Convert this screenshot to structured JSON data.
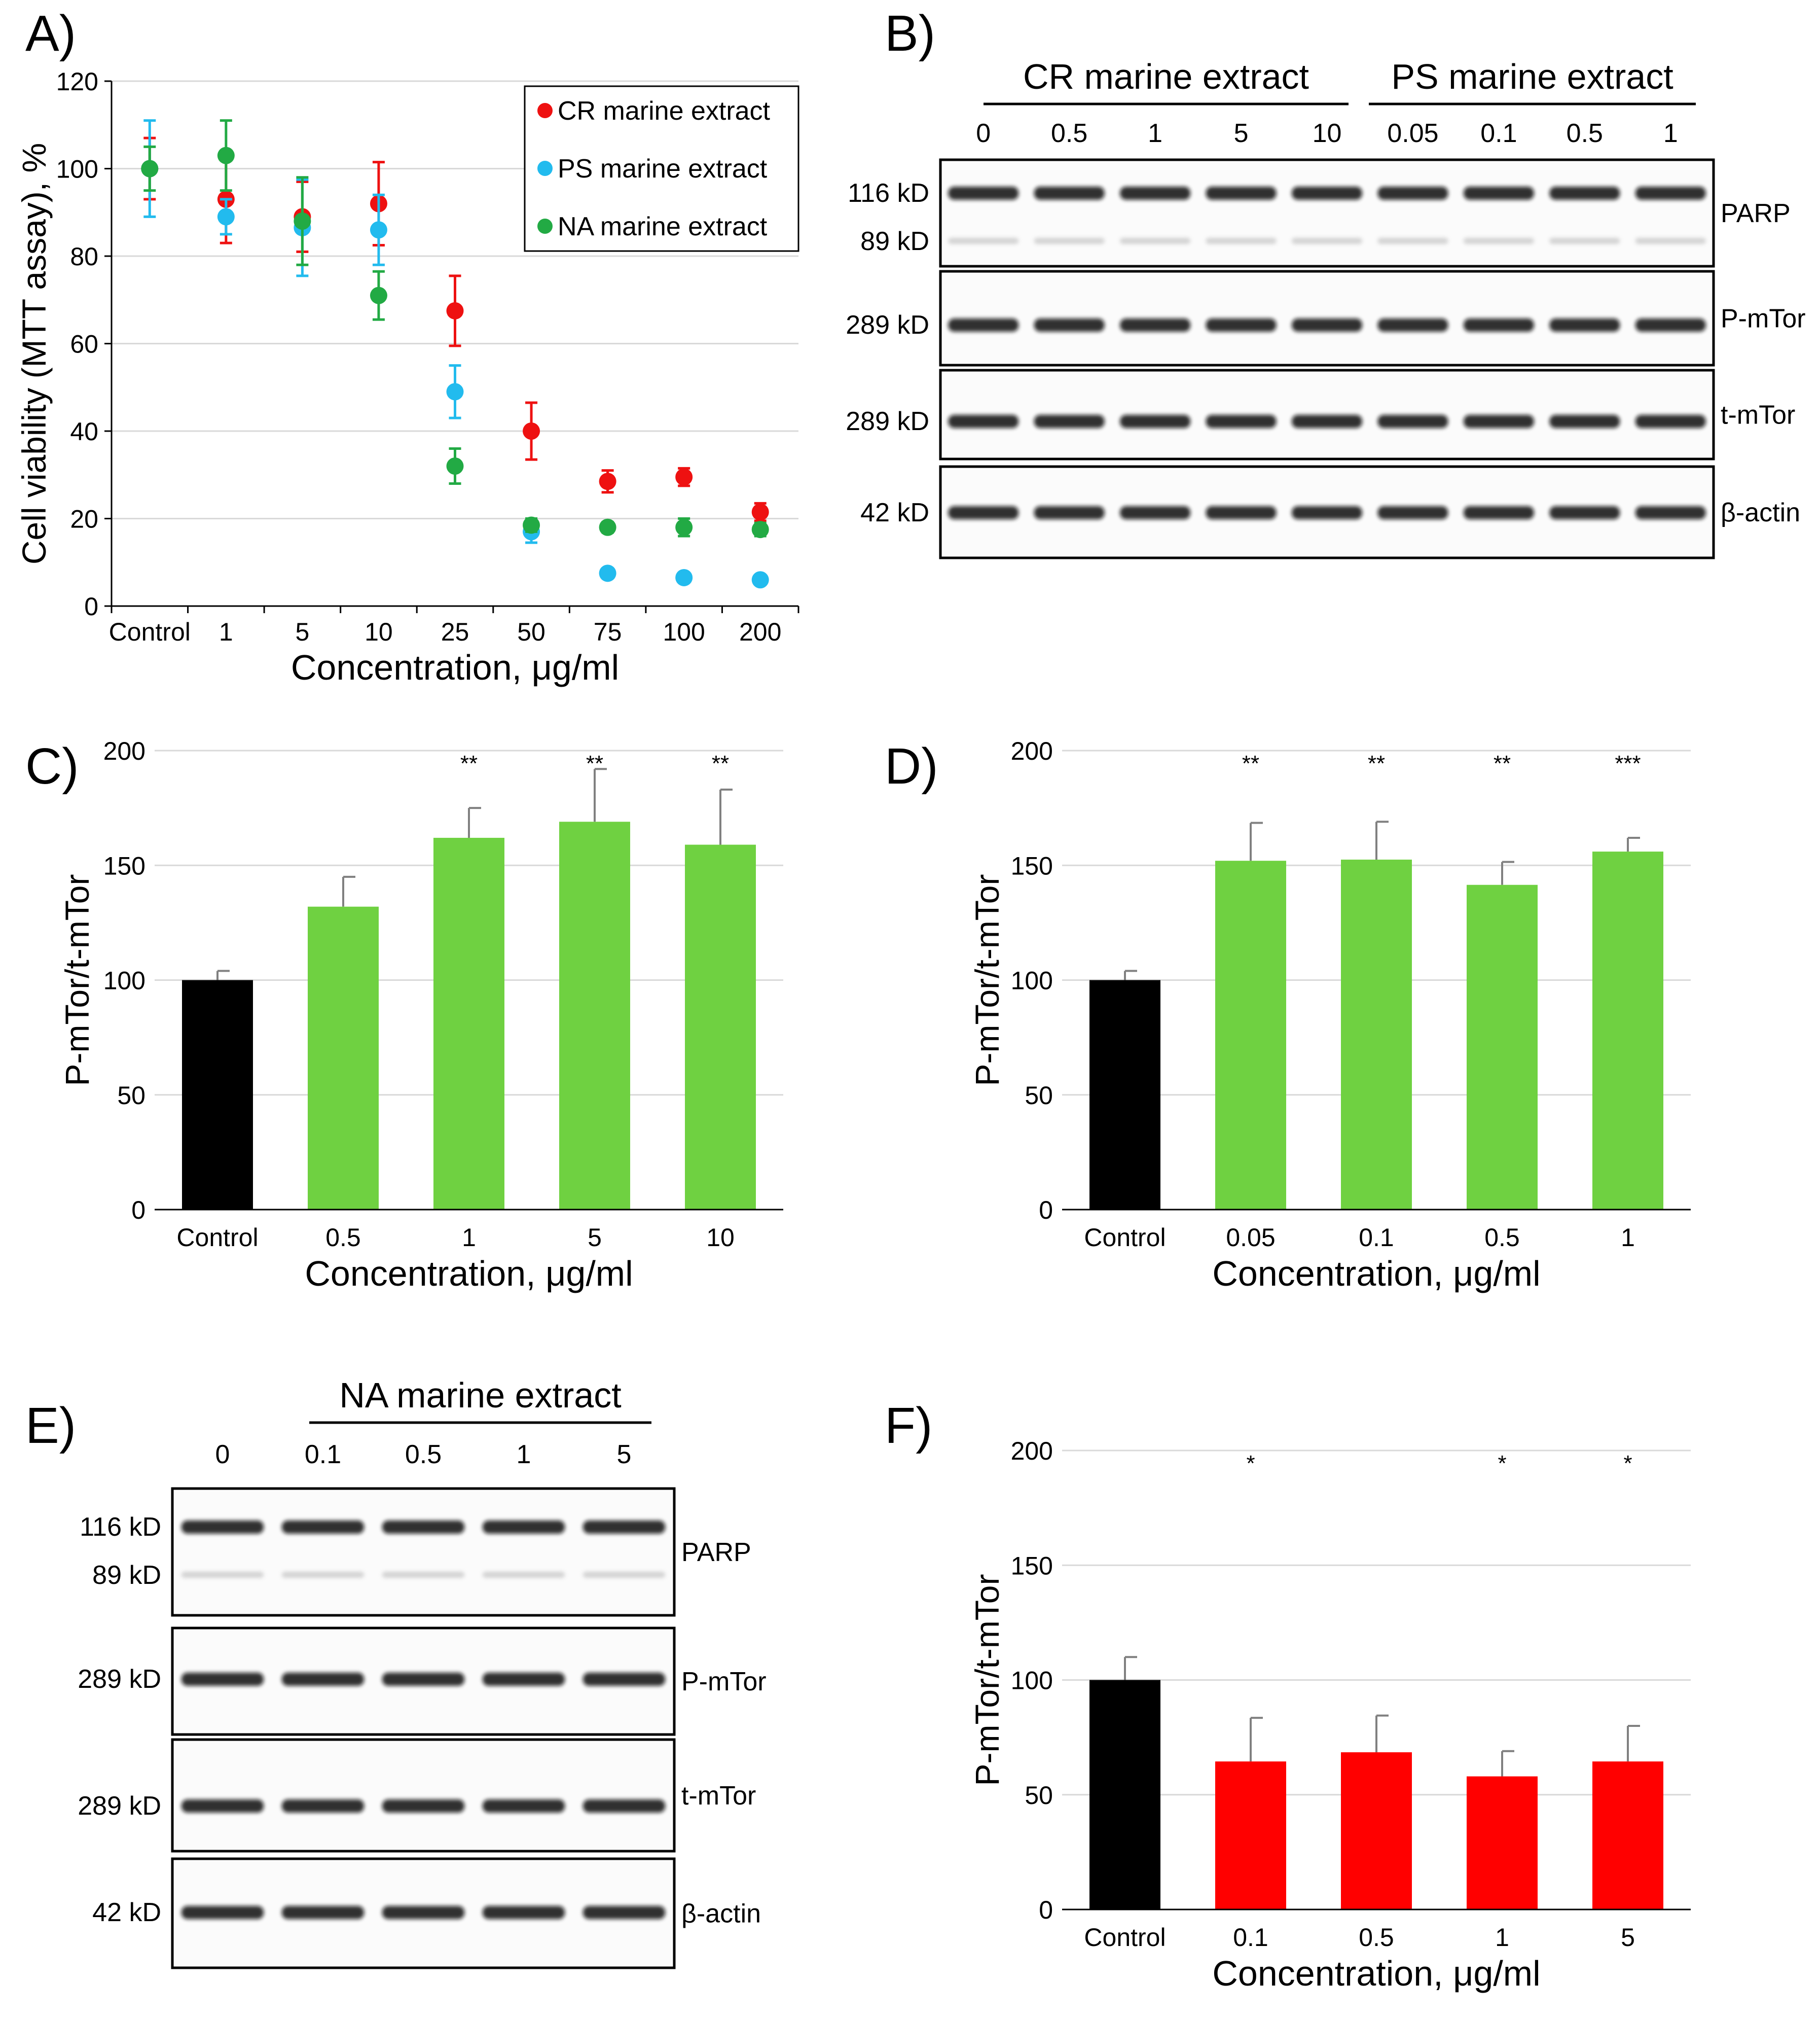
{
  "colors": {
    "cr": "#EE1111",
    "ps": "#22BBEE",
    "na": "#22AA44",
    "control": "#000000",
    "green_bar": "#6FD141",
    "red_bar": "#FF0000",
    "grid": "#D9D9D9"
  },
  "panels": {
    "A": {
      "letter": "A)"
    },
    "B": {
      "letter": "B)"
    },
    "C": {
      "letter": "C)"
    },
    "D": {
      "letter": "D)"
    },
    "E": {
      "letter": "E)"
    },
    "F": {
      "letter": "F)"
    }
  },
  "chart_data": [
    {
      "panel": "A",
      "type": "scatter",
      "title": "",
      "xlabel": "Concentration, μg/ml",
      "ylabel": "Cell viability (MTT assay), %",
      "ylim": [
        0,
        120
      ],
      "yticks": [
        "0",
        "20",
        "40",
        "60",
        "80",
        "100",
        "120"
      ],
      "categories": [
        "Control",
        "1",
        "5",
        "10",
        "25",
        "50",
        "75",
        "100",
        "200"
      ],
      "grid": true,
      "legend_position": "top-right",
      "series": [
        {
          "name": "CR marine extract",
          "color": "#EE1111",
          "values": [
            100,
            93,
            89,
            92,
            67.5,
            40,
            28.5,
            29.5,
            21.5
          ],
          "errors": [
            7,
            10,
            8,
            9.5,
            8,
            6.5,
            2.5,
            2,
            2
          ]
        },
        {
          "name": "PS marine extract",
          "color": "#22BBEE",
          "values": [
            100,
            89,
            86.5,
            86,
            49,
            17,
            7.5,
            6.5,
            6
          ],
          "errors": [
            11,
            4,
            11,
            8,
            6,
            2.5,
            1,
            0.8,
            0.8
          ]
        },
        {
          "name": "NA marine extract",
          "color": "#22AA44",
          "values": [
            100,
            103,
            88,
            71,
            32,
            18.5,
            18,
            18,
            17.5
          ],
          "errors": [
            5,
            8,
            10,
            5.5,
            4,
            1.5,
            1.2,
            2,
            1.5
          ]
        }
      ]
    },
    {
      "panel": "C",
      "type": "bar",
      "xlabel": "Concentration, μg/ml",
      "ylabel": "P-mTor/t-mTor",
      "ylim": [
        0,
        200
      ],
      "yticks": [
        "0",
        "50",
        "100",
        "150",
        "200"
      ],
      "categories": [
        "Control",
        "0.5",
        "1",
        "5",
        "10"
      ],
      "values": [
        100,
        132,
        162,
        169,
        159
      ],
      "errors": [
        4,
        13,
        13,
        23,
        24
      ],
      "significance": [
        "",
        "",
        "**",
        "**",
        "**"
      ],
      "bar_colors": [
        "#000000",
        "#6FD141",
        "#6FD141",
        "#6FD141",
        "#6FD141"
      ]
    },
    {
      "panel": "D",
      "type": "bar",
      "xlabel": "Concentration, μg/ml",
      "ylabel": "P-mTor/t-mTor",
      "ylim": [
        0,
        200
      ],
      "yticks": [
        "0",
        "50",
        "100",
        "150",
        "200"
      ],
      "categories": [
        "Control",
        "0.05",
        "0.1",
        "0.5",
        "1"
      ],
      "values": [
        100,
        152,
        152.5,
        141.5,
        156
      ],
      "errors": [
        4,
        16.5,
        16.5,
        10,
        6
      ],
      "significance": [
        "",
        "**",
        "**",
        "**",
        "***"
      ],
      "bar_colors": [
        "#000000",
        "#6FD141",
        "#6FD141",
        "#6FD141",
        "#6FD141"
      ]
    },
    {
      "panel": "F",
      "type": "bar",
      "xlabel": "Concentration, μg/ml",
      "ylabel": "P-mTor/t-mTor",
      "ylim": [
        0,
        200
      ],
      "yticks": [
        "0",
        "50",
        "100",
        "150",
        "200"
      ],
      "categories": [
        "Control",
        "0.1",
        "0.5",
        "1",
        "5"
      ],
      "values": [
        100,
        64.5,
        68.5,
        58,
        64.5
      ],
      "errors": [
        10,
        19,
        16,
        11,
        15.5
      ],
      "significance": [
        "",
        "*",
        "",
        "*",
        "*"
      ],
      "bar_colors": [
        "#000000",
        "#FF0000",
        "#FF0000",
        "#FF0000",
        "#FF0000"
      ]
    }
  ],
  "blot_B": {
    "groups": [
      "CR marine extract",
      "PS marine extract"
    ],
    "lanes": [
      "0",
      "0.5",
      "1",
      "5",
      "10",
      "0.05",
      "0.1",
      "0.5",
      "1"
    ],
    "rows": [
      {
        "label": "PARP",
        "markers": [
          "116 kD",
          "89 kD"
        ]
      },
      {
        "label": "P-mTor",
        "markers": [
          "289 kD"
        ]
      },
      {
        "label": "t-mTor",
        "markers": [
          "289 kD"
        ]
      },
      {
        "label": "β-actin",
        "markers": [
          "42 kD"
        ]
      }
    ]
  },
  "blot_E": {
    "groups": [
      "NA marine extract"
    ],
    "lanes": [
      "0",
      "0.1",
      "0.5",
      "1",
      "5"
    ],
    "rows": [
      {
        "label": "PARP",
        "markers": [
          "116 kD",
          "89 kD"
        ]
      },
      {
        "label": "P-mTor",
        "markers": [
          "289 kD"
        ]
      },
      {
        "label": "t-mTor",
        "markers": [
          "289 kD"
        ]
      },
      {
        "label": "β-actin",
        "markers": [
          "42 kD"
        ]
      }
    ]
  }
}
